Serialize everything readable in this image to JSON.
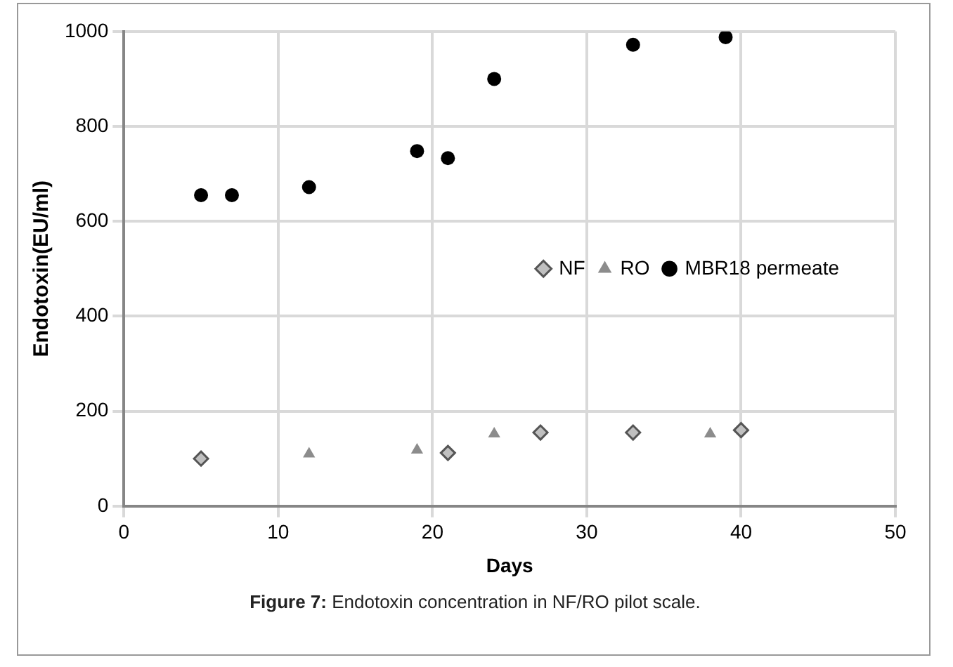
{
  "chart_data": {
    "type": "scatter",
    "xlabel": "Days",
    "ylabel": "Endotoxin(EU/ml)",
    "xlim": [
      0,
      50
    ],
    "xticks": [
      0,
      10,
      20,
      30,
      40,
      50
    ],
    "ylim": [
      0,
      1000
    ],
    "yticks": [
      0,
      200,
      400,
      600,
      800,
      1000
    ],
    "grid": true,
    "legend": "center right",
    "annotations": [
      "Figure 7: Endotoxin concentration in NF/RO pilot scale."
    ],
    "series": [
      {
        "name": "NF",
        "color": "#c0c0c0",
        "marker": "diamond",
        "x": [
          5,
          21,
          27,
          33,
          40
        ],
        "values": [
          100,
          112,
          155,
          155,
          160
        ]
      },
      {
        "name": "RO",
        "color": "#8c8c8c",
        "marker": "triangle",
        "x": [
          12,
          19,
          24,
          38
        ],
        "values": [
          110,
          118,
          152,
          152
        ]
      },
      {
        "name": "MBR18 permeate",
        "color": "#000000",
        "marker": "circle",
        "x": [
          5,
          7,
          12,
          19,
          21,
          24,
          33,
          39
        ],
        "values": [
          655,
          655,
          672,
          748,
          733,
          900,
          972,
          988
        ]
      }
    ]
  }
}
